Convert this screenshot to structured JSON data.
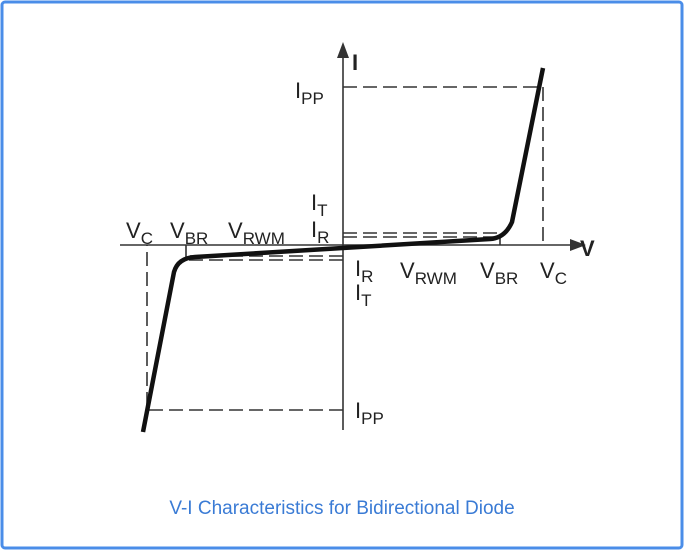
{
  "axes": {
    "current": "I",
    "voltage": "V"
  },
  "labels": [
    {
      "base": "I",
      "sub": "PP"
    },
    {
      "base": "V",
      "sub": "C"
    },
    {
      "base": "V",
      "sub": "BR"
    },
    {
      "base": "V",
      "sub": "RWM"
    },
    {
      "base": "I",
      "sub": "T"
    },
    {
      "base": "I",
      "sub": "R"
    },
    {
      "base": "I",
      "sub": "R"
    },
    {
      "base": "I",
      "sub": "T"
    },
    {
      "base": "V",
      "sub": "RWM"
    },
    {
      "base": "V",
      "sub": "BR"
    },
    {
      "base": "V",
      "sub": "C"
    },
    {
      "base": "I",
      "sub": "PP"
    }
  ],
  "caption": "V-I Characteristics for Bidirectional Diode"
}
